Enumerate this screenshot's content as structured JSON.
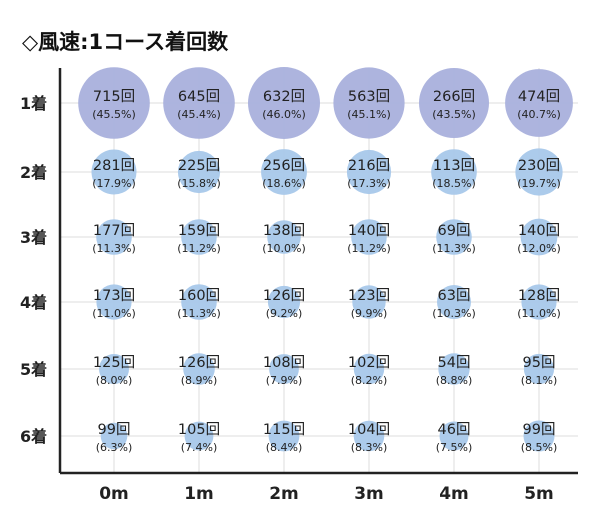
{
  "chart_data": {
    "type": "bubble-grid",
    "title": "◇風速:1コース着回数",
    "x_categories": [
      "0m",
      "1m",
      "2m",
      "3m",
      "4m",
      "5m"
    ],
    "y_categories": [
      "1着",
      "2着",
      "3着",
      "4着",
      "5着",
      "6着"
    ],
    "grid": true,
    "bubble_color": "#a9b0dc",
    "bubble_color_small": "#a8c8ea",
    "cells": [
      [
        {
          "count": "715回",
          "pct": "(45.5%)",
          "value": 45.5
        },
        {
          "count": "645回",
          "pct": "(45.4%)",
          "value": 45.4
        },
        {
          "count": "632回",
          "pct": "(46.0%)",
          "value": 46.0
        },
        {
          "count": "563回",
          "pct": "(45.1%)",
          "value": 45.1
        },
        {
          "count": "266回",
          "pct": "(43.5%)",
          "value": 43.5
        },
        {
          "count": "474回",
          "pct": "(40.7%)",
          "value": 40.7
        }
      ],
      [
        {
          "count": "281回",
          "pct": "(17.9%)",
          "value": 17.9
        },
        {
          "count": "225回",
          "pct": "(15.8%)",
          "value": 15.8
        },
        {
          "count": "256回",
          "pct": "(18.6%)",
          "value": 18.6
        },
        {
          "count": "216回",
          "pct": "(17.3%)",
          "value": 17.3
        },
        {
          "count": "113回",
          "pct": "(18.5%)",
          "value": 18.5
        },
        {
          "count": "230回",
          "pct": "(19.7%)",
          "value": 19.7
        }
      ],
      [
        {
          "count": "177回",
          "pct": "(11.3%)",
          "value": 11.3
        },
        {
          "count": "159回",
          "pct": "(11.2%)",
          "value": 11.2
        },
        {
          "count": "138回",
          "pct": "(10.0%)",
          "value": 10.0
        },
        {
          "count": "140回",
          "pct": "(11.2%)",
          "value": 11.2
        },
        {
          "count": "69回",
          "pct": "(11.3%)",
          "value": 11.3
        },
        {
          "count": "140回",
          "pct": "(12.0%)",
          "value": 12.0
        }
      ],
      [
        {
          "count": "173回",
          "pct": "(11.0%)",
          "value": 11.0
        },
        {
          "count": "160回",
          "pct": "(11.3%)",
          "value": 11.3
        },
        {
          "count": "126回",
          "pct": "(9.2%)",
          "value": 9.2
        },
        {
          "count": "123回",
          "pct": "(9.9%)",
          "value": 9.9
        },
        {
          "count": "63回",
          "pct": "(10.3%)",
          "value": 10.3
        },
        {
          "count": "128回",
          "pct": "(11.0%)",
          "value": 11.0
        }
      ],
      [
        {
          "count": "125回",
          "pct": "(8.0%)",
          "value": 8.0
        },
        {
          "count": "126回",
          "pct": "(8.9%)",
          "value": 8.9
        },
        {
          "count": "108回",
          "pct": "(7.9%)",
          "value": 7.9
        },
        {
          "count": "102回",
          "pct": "(8.2%)",
          "value": 8.2
        },
        {
          "count": "54回",
          "pct": "(8.8%)",
          "value": 8.8
        },
        {
          "count": "95回",
          "pct": "(8.1%)",
          "value": 8.1
        }
      ],
      [
        {
          "count": "99回",
          "pct": "(6.3%)",
          "value": 6.3
        },
        {
          "count": "105回",
          "pct": "(7.4%)",
          "value": 7.4
        },
        {
          "count": "115回",
          "pct": "(8.4%)",
          "value": 8.4
        },
        {
          "count": "104回",
          "pct": "(8.3%)",
          "value": 8.3
        },
        {
          "count": "46回",
          "pct": "(7.5%)",
          "value": 7.5
        },
        {
          "count": "99回",
          "pct": "(8.5%)",
          "value": 8.5
        }
      ]
    ]
  }
}
